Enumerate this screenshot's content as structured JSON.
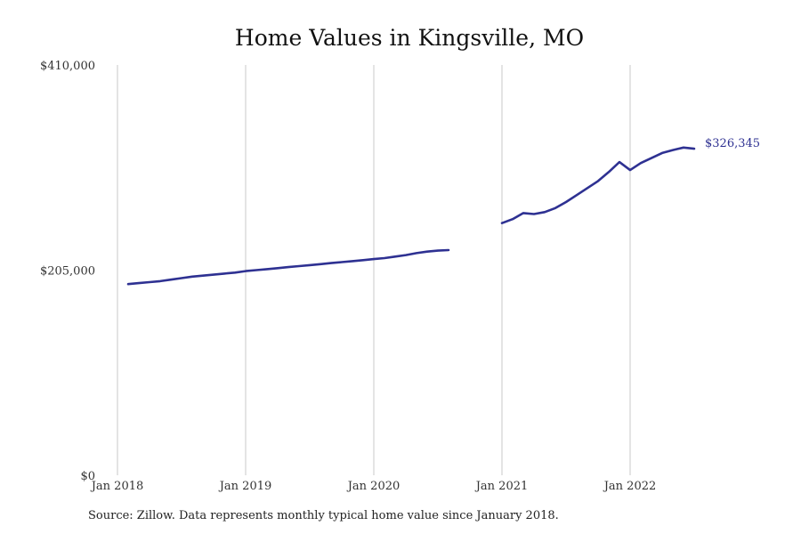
{
  "chart_data": {
    "type": "line",
    "title": "Home Values in Kingsville, MO",
    "xlabel": "",
    "ylabel": "",
    "ylim": [
      0,
      410000
    ],
    "y_ticks": [
      {
        "value": 0,
        "label": "$0"
      },
      {
        "value": 205000,
        "label": "$205,000"
      },
      {
        "value": 410000,
        "label": "$410,000"
      }
    ],
    "x_ticks": [
      {
        "value": "2018-01",
        "label": "Jan 2018"
      },
      {
        "value": "2019-01",
        "label": "Jan 2019"
      },
      {
        "value": "2020-01",
        "label": "Jan 2020"
      },
      {
        "value": "2021-01",
        "label": "Jan 2021"
      },
      {
        "value": "2022-01",
        "label": "Jan 2022"
      }
    ],
    "x_range": [
      "2018-01",
      "2023-01"
    ],
    "grid": "vertical",
    "series": [
      {
        "color": "#2e3192",
        "segments": [
          [
            {
              "x": "2018-02",
              "y": 191000
            },
            {
              "x": "2018-03",
              "y": 192000
            },
            {
              "x": "2018-04",
              "y": 193000
            },
            {
              "x": "2018-05",
              "y": 194000
            },
            {
              "x": "2018-06",
              "y": 195500
            },
            {
              "x": "2018-07",
              "y": 197000
            },
            {
              "x": "2018-08",
              "y": 198500
            },
            {
              "x": "2018-09",
              "y": 199500
            },
            {
              "x": "2018-10",
              "y": 200500
            },
            {
              "x": "2018-11",
              "y": 201500
            },
            {
              "x": "2018-12",
              "y": 202500
            },
            {
              "x": "2019-01",
              "y": 204000
            },
            {
              "x": "2019-02",
              "y": 205000
            },
            {
              "x": "2019-03",
              "y": 206000
            },
            {
              "x": "2019-04",
              "y": 207000
            },
            {
              "x": "2019-05",
              "y": 208000
            },
            {
              "x": "2019-06",
              "y": 209000
            },
            {
              "x": "2019-07",
              "y": 210000
            },
            {
              "x": "2019-08",
              "y": 211000
            },
            {
              "x": "2019-09",
              "y": 212000
            },
            {
              "x": "2019-10",
              "y": 213000
            },
            {
              "x": "2019-11",
              "y": 214000
            },
            {
              "x": "2019-12",
              "y": 215000
            },
            {
              "x": "2020-01",
              "y": 216000
            },
            {
              "x": "2020-02",
              "y": 217000
            },
            {
              "x": "2020-03",
              "y": 218500
            },
            {
              "x": "2020-04",
              "y": 220000
            },
            {
              "x": "2020-05",
              "y": 222000
            },
            {
              "x": "2020-06",
              "y": 223500
            },
            {
              "x": "2020-07",
              "y": 224500
            },
            {
              "x": "2020-08",
              "y": 225000
            }
          ],
          [
            {
              "x": "2021-01",
              "y": 252000
            },
            {
              "x": "2021-02",
              "y": 256000
            },
            {
              "x": "2021-03",
              "y": 262000
            },
            {
              "x": "2021-04",
              "y": 261000
            },
            {
              "x": "2021-05",
              "y": 263000
            },
            {
              "x": "2021-06",
              "y": 267000
            },
            {
              "x": "2021-07",
              "y": 273000
            },
            {
              "x": "2021-08",
              "y": 280000
            },
            {
              "x": "2021-09",
              "y": 287000
            },
            {
              "x": "2021-10",
              "y": 294000
            },
            {
              "x": "2021-11",
              "y": 303000
            },
            {
              "x": "2021-12",
              "y": 313000
            },
            {
              "x": "2022-01",
              "y": 305000
            },
            {
              "x": "2022-02",
              "y": 312000
            },
            {
              "x": "2022-03",
              "y": 317000
            },
            {
              "x": "2022-04",
              "y": 322000
            },
            {
              "x": "2022-05",
              "y": 325000
            },
            {
              "x": "2022-06",
              "y": 327500
            },
            {
              "x": "2022-07",
              "y": 326345
            }
          ]
        ]
      }
    ],
    "end_label": "$326,345",
    "source": "Source: Zillow. Data represents monthly typical home value since January 2018."
  }
}
